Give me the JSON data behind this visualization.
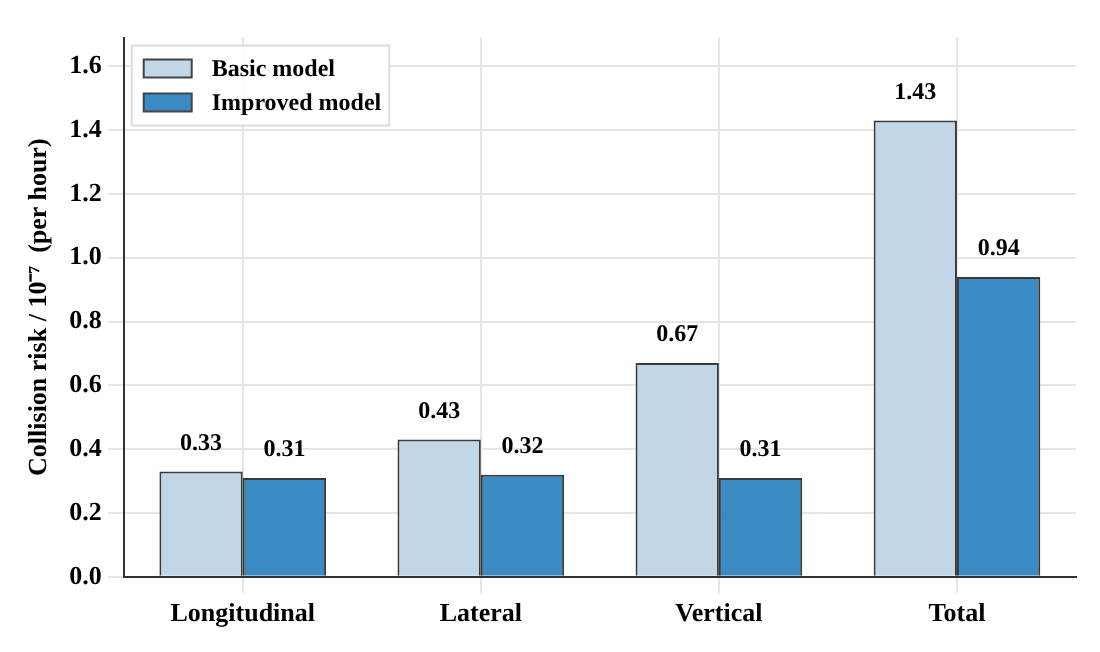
{
  "chart_data": {
    "type": "bar",
    "ylabel": "Collision risk / 10⁻⁷  (per hour)",
    "categories": [
      "Longitudinal",
      "Lateral",
      "Vertical",
      "Total"
    ],
    "series": [
      {
        "name": "Basic model",
        "color": "#c1d6e6",
        "values": [
          0.33,
          0.43,
          0.67,
          1.43
        ]
      },
      {
        "name": "Improved model",
        "color": "#3a8bc3",
        "values": [
          0.31,
          0.32,
          0.31,
          0.94
        ]
      }
    ],
    "ylim": [
      0,
      1.69
    ],
    "yticks": [
      {
        "value": 0,
        "label": "0.0"
      },
      0.2,
      0.4,
      0.6,
      0.8,
      {
        "value": 1,
        "label": "1.0"
      },
      1.2,
      1.4,
      1.6
    ],
    "grid": true,
    "legend": "top left",
    "data_labels": true
  }
}
